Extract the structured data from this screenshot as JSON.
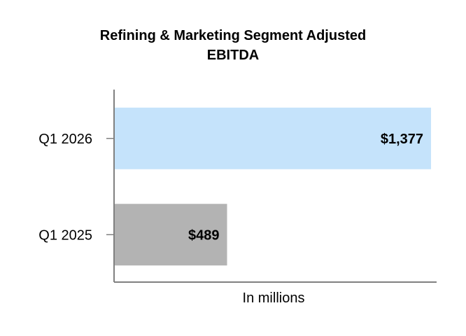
{
  "chart_data": {
    "type": "bar",
    "orientation": "horizontal",
    "title_lines": [
      "Refining & Marketing Segment Adjusted",
      "EBITDA"
    ],
    "categories": [
      "Q1 2026",
      "Q1 2025"
    ],
    "values": [
      1377,
      489
    ],
    "data_labels": [
      "$1,377",
      "$489"
    ],
    "bar_colors": [
      "#c5e3fb",
      "#b3b3b3"
    ],
    "xlabel": "In millions",
    "ylabel": "",
    "xlim": [
      0,
      1450
    ],
    "grid": false,
    "legend": "none"
  }
}
